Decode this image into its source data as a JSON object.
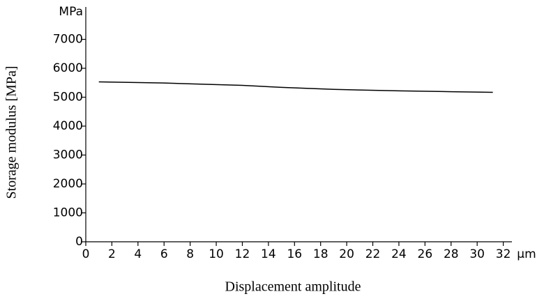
{
  "chart_data": {
    "type": "line",
    "x_label": "Displacement  amplitude",
    "y_label": "Storage modulus [MPa]",
    "x_unit": "μm",
    "y_unit": "MPa",
    "x": [
      1,
      6,
      9,
      12,
      15,
      19,
      24,
      28,
      31.2
    ],
    "series": [
      {
        "name": "Storage modulus",
        "color": "#000000",
        "values": [
          5530,
          5490,
          5450,
          5410,
          5340,
          5270,
          5220,
          5190,
          5170
        ]
      }
    ],
    "xlim": [
      0,
      34
    ],
    "ylim": [
      0,
      8000
    ],
    "xticks": [
      0,
      2,
      4,
      6,
      8,
      10,
      12,
      14,
      16,
      18,
      20,
      22,
      24,
      26,
      28,
      30,
      32
    ],
    "yticks": [
      0,
      1000,
      2000,
      3000,
      4000,
      5000,
      6000,
      7000
    ]
  }
}
